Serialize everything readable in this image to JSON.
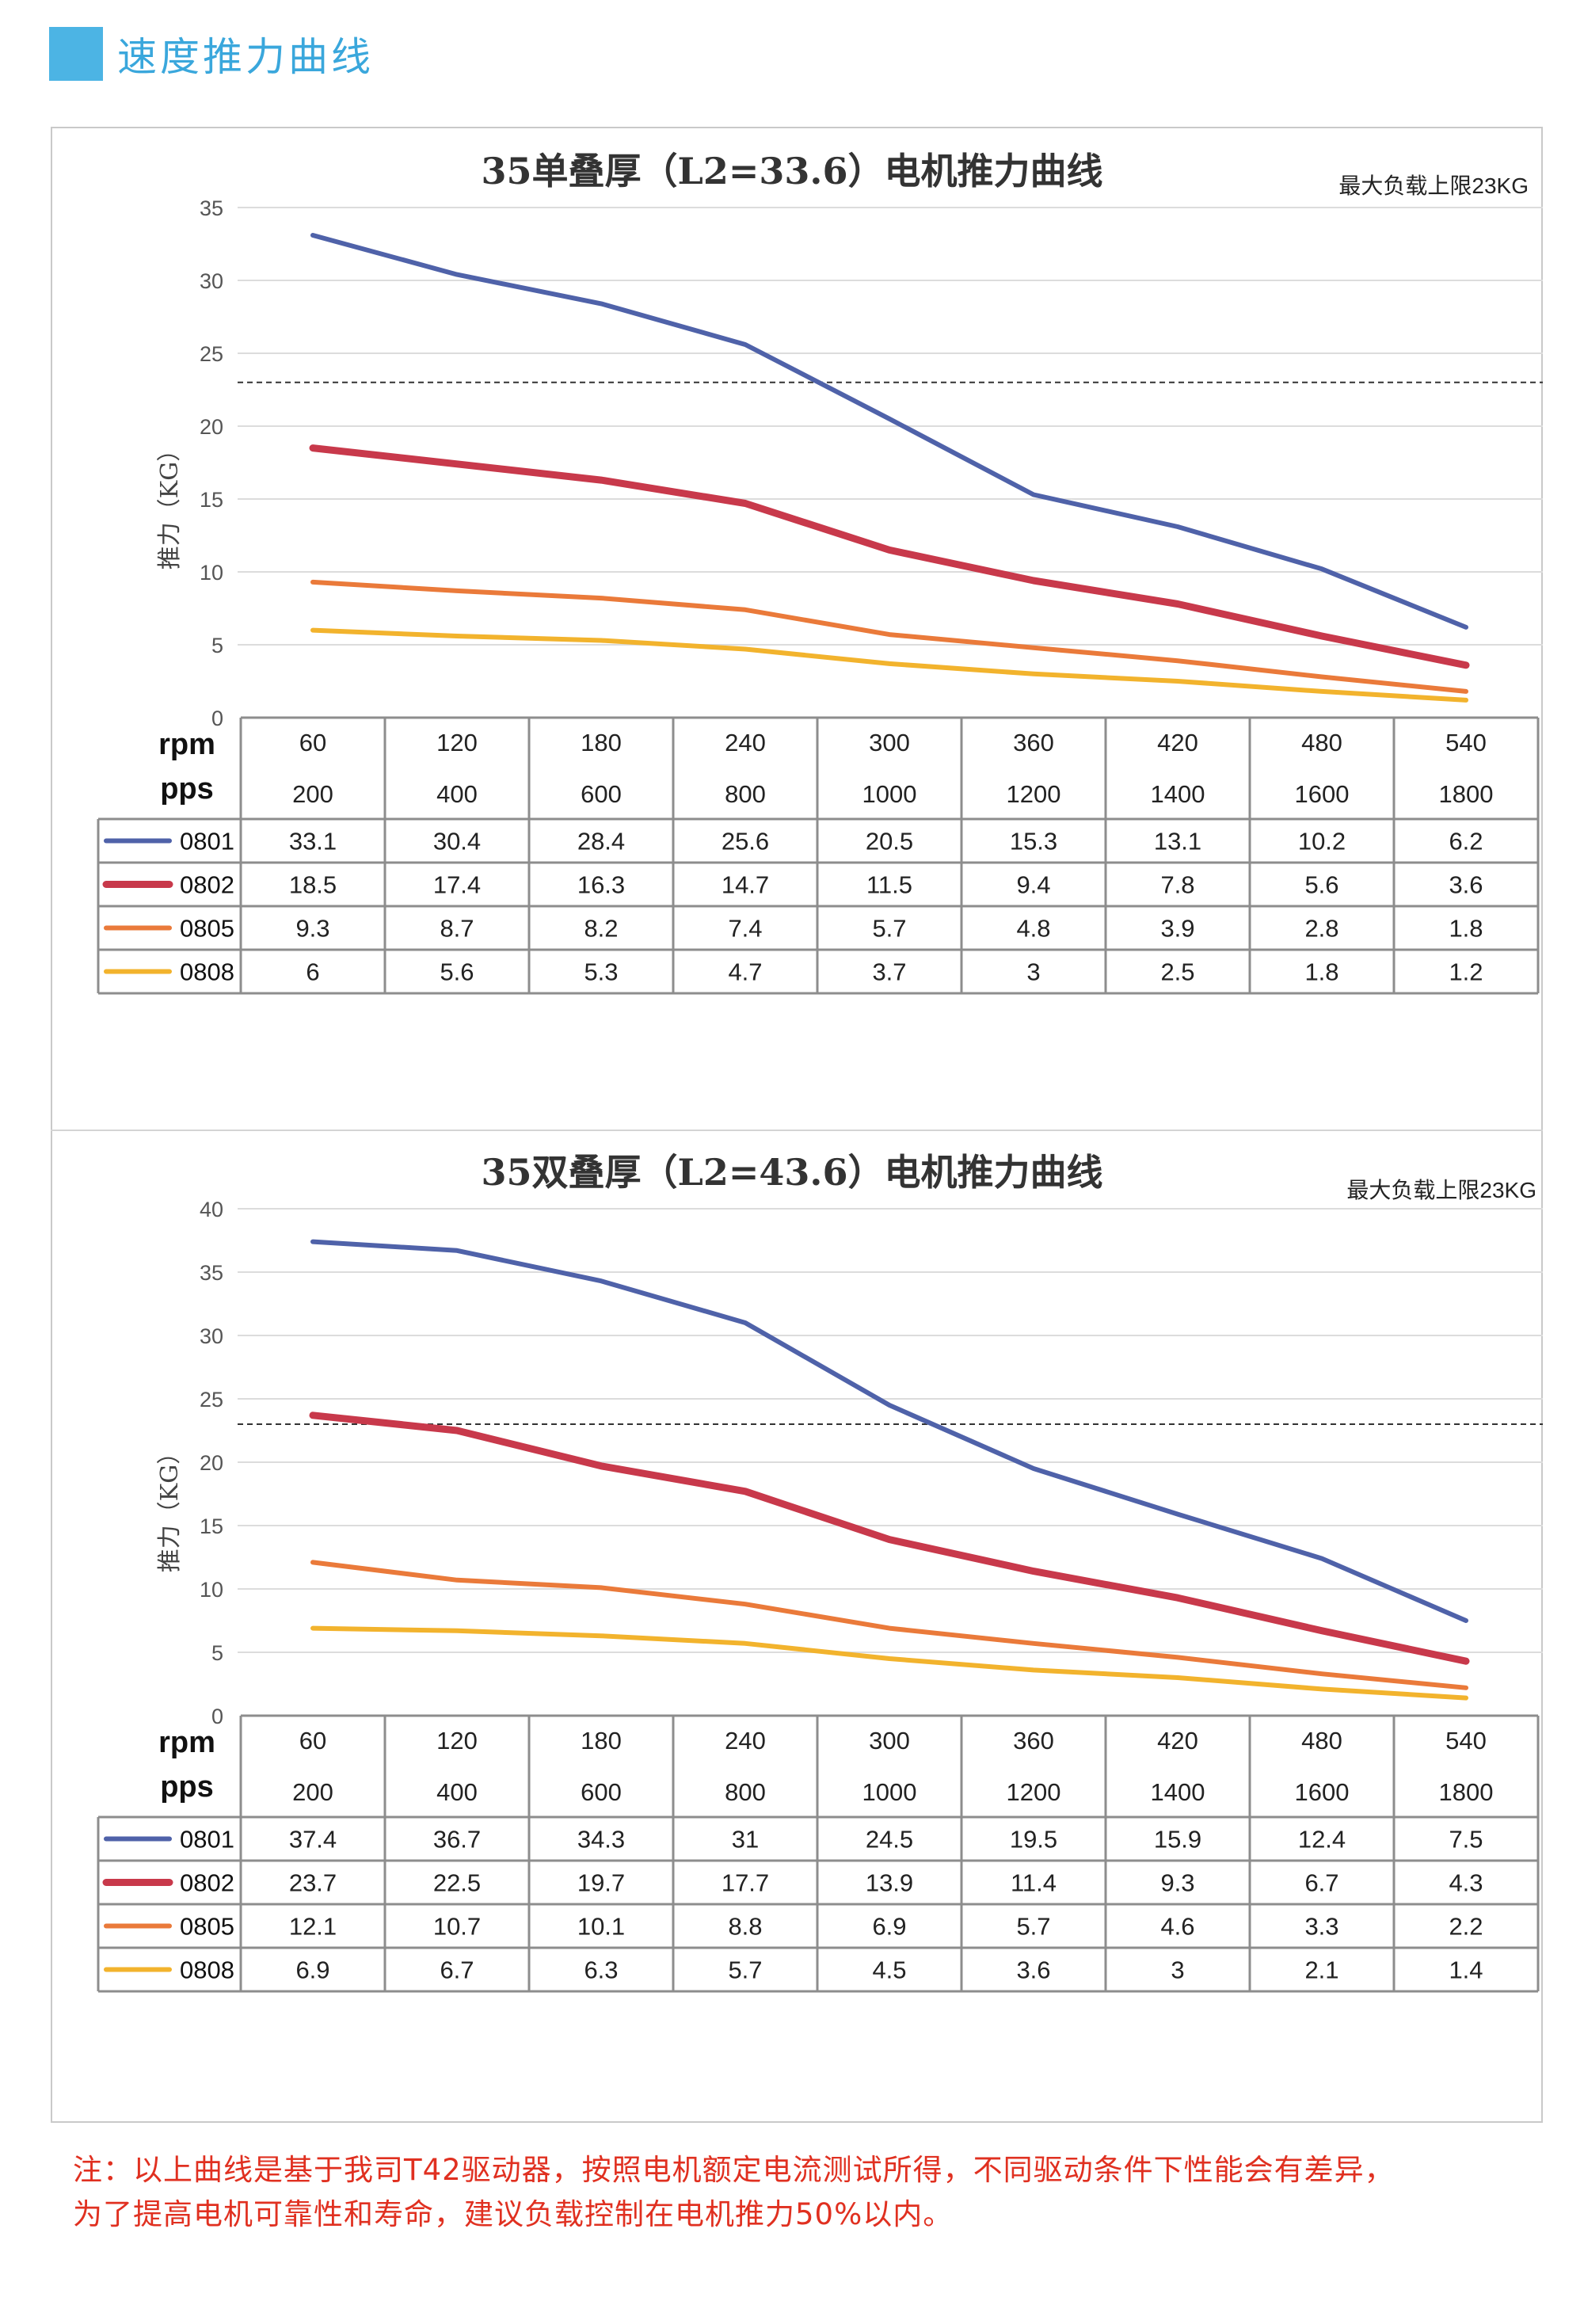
{
  "header": {
    "title": "速度推力曲线",
    "accent_color": "#4cb4e4"
  },
  "note": {
    "line1": "注：以上曲线是基于我司T42驱动器，按照电机额定电流测试所得，不同驱动条件下性能会有差异，",
    "line2": "为了提高电机可靠性和寿命，建议负载控制在电机推力50%以内。"
  },
  "chart_data": [
    {
      "type": "line",
      "title": "35单叠厚（L2=33.6）电机推力曲线",
      "annotation": "最大负载上限23KG",
      "ylabel": "推力（KG）",
      "ylim": [
        0,
        35
      ],
      "yticks": [
        0,
        5,
        10,
        15,
        20,
        25,
        30,
        35
      ],
      "grid": true,
      "reference_line": 23,
      "row_labels": [
        "rpm",
        "pps"
      ],
      "rpm": [
        "60",
        "120",
        "180",
        "240",
        "300",
        "360",
        "420",
        "480",
        "540"
      ],
      "pps": [
        "200",
        "400",
        "600",
        "800",
        "1000",
        "1200",
        "1400",
        "1600",
        "1800"
      ],
      "series": [
        {
          "name": "0801",
          "color": "#4f62a9",
          "values": [
            33.1,
            30.4,
            28.4,
            25.6,
            20.5,
            15.3,
            13.1,
            10.2,
            6.2
          ]
        },
        {
          "name": "0802",
          "color": "#c8394b",
          "values": [
            18.5,
            17.4,
            16.3,
            14.7,
            11.5,
            9.4,
            7.8,
            5.6,
            3.6
          ]
        },
        {
          "name": "0805",
          "color": "#ea7a3a",
          "values": [
            9.3,
            8.7,
            8.2,
            7.4,
            5.7,
            4.8,
            3.9,
            2.8,
            1.8
          ]
        },
        {
          "name": "0808",
          "color": "#f2b32d",
          "values": [
            6,
            5.6,
            5.3,
            4.7,
            3.7,
            3,
            2.5,
            1.8,
            1.2
          ]
        }
      ]
    },
    {
      "type": "line",
      "title": "35双叠厚（L2=43.6）电机推力曲线",
      "annotation": "最大负载上限23KG",
      "ylabel": "推力（KG）",
      "ylim": [
        0,
        40
      ],
      "yticks": [
        0,
        5,
        10,
        15,
        20,
        25,
        30,
        35,
        40
      ],
      "grid": true,
      "reference_line": 23,
      "row_labels": [
        "rpm",
        "pps"
      ],
      "rpm": [
        "60",
        "120",
        "180",
        "240",
        "300",
        "360",
        "420",
        "480",
        "540"
      ],
      "pps": [
        "200",
        "400",
        "600",
        "800",
        "1000",
        "1200",
        "1400",
        "1600",
        "1800"
      ],
      "series": [
        {
          "name": "0801",
          "color": "#4f62a9",
          "values": [
            37.4,
            36.7,
            34.3,
            31,
            24.5,
            19.5,
            15.9,
            12.4,
            7.5
          ]
        },
        {
          "name": "0802",
          "color": "#c8394b",
          "values": [
            23.7,
            22.5,
            19.7,
            17.7,
            13.9,
            11.4,
            9.3,
            6.7,
            4.3
          ]
        },
        {
          "name": "0805",
          "color": "#ea7a3a",
          "values": [
            12.1,
            10.7,
            10.1,
            8.8,
            6.9,
            5.7,
            4.6,
            3.3,
            2.2
          ]
        },
        {
          "name": "0808",
          "color": "#f2b32d",
          "values": [
            6.9,
            6.7,
            6.3,
            5.7,
            4.5,
            3.6,
            3,
            2.1,
            1.4
          ]
        }
      ]
    }
  ]
}
